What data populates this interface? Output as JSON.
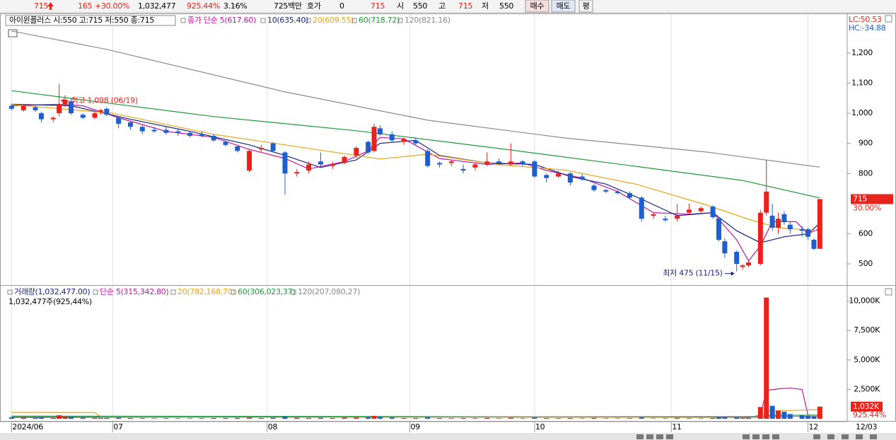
{
  "header": {
    "items": [
      "715",
      "165",
      "+30.00%",
      "1,032,477",
      "925.44%",
      "3.16%",
      "725백만",
      "호가",
      "0",
      "715",
      "시",
      "550",
      "고",
      "715",
      "저",
      "550"
    ],
    "buttons": [
      "매수",
      "매도",
      "평"
    ]
  },
  "chart_data": {
    "type": "candlestick",
    "stock_label": "아이윈플러스 시:550 고:715 저:550 종:715",
    "up_color": "#e8231c",
    "down_color": "#1e5fcf",
    "x": [
      0,
      2,
      4,
      5,
      7,
      8,
      9,
      10,
      12,
      14,
      15,
      16,
      18,
      20,
      22,
      24,
      26,
      28,
      30,
      32,
      34,
      36,
      38,
      40,
      42,
      44,
      46,
      48,
      50,
      52,
      54,
      56,
      58,
      60,
      61,
      62,
      64,
      66,
      68,
      70,
      72,
      74,
      76,
      78,
      80,
      82,
      84,
      86,
      88,
      90,
      92,
      94,
      96,
      98,
      100,
      102,
      104,
      106,
      108,
      110,
      112,
      114,
      116,
      118,
      119,
      120,
      122,
      123,
      124,
      126,
      127,
      128,
      129,
      130,
      131,
      133,
      134,
      135,
      136
    ],
    "open": [
      1025,
      1010,
      1020,
      1000,
      980,
      1000,
      1030,
      1040,
      995,
      985,
      1005,
      1015,
      985,
      970,
      955,
      945,
      945,
      940,
      935,
      930,
      925,
      905,
      890,
      810,
      880,
      900,
      870,
      800,
      810,
      840,
      825,
      835,
      860,
      905,
      875,
      950,
      930,
      905,
      910,
      875,
      835,
      835,
      815,
      820,
      830,
      840,
      830,
      840,
      840,
      795,
      790,
      800,
      790,
      760,
      745,
      740,
      735,
      720,
      660,
      650,
      650,
      670,
      675,
      690,
      650,
      575,
      540,
      490,
      495,
      500,
      670,
      660,
      620,
      665,
      630,
      615,
      615,
      580,
      550
    ],
    "high": [
      1030,
      1030,
      1025,
      1005,
      990,
      1098,
      1060,
      1050,
      1000,
      1005,
      1015,
      1020,
      990,
      975,
      960,
      955,
      955,
      950,
      940,
      940,
      930,
      910,
      895,
      880,
      895,
      905,
      875,
      815,
      840,
      870,
      840,
      860,
      890,
      910,
      965,
      960,
      940,
      920,
      920,
      880,
      840,
      845,
      830,
      835,
      870,
      850,
      900,
      845,
      845,
      800,
      810,
      805,
      800,
      765,
      750,
      745,
      740,
      725,
      670,
      660,
      700,
      700,
      690,
      695,
      655,
      585,
      545,
      500,
      510,
      680,
      845,
      700,
      670,
      675,
      640,
      625,
      620,
      585,
      715
    ],
    "low": [
      1010,
      1005,
      1005,
      970,
      970,
      990,
      1020,
      995,
      980,
      980,
      995,
      990,
      950,
      945,
      930,
      935,
      930,
      925,
      920,
      920,
      905,
      890,
      870,
      805,
      870,
      870,
      730,
      790,
      800,
      820,
      815,
      830,
      850,
      865,
      870,
      925,
      905,
      895,
      895,
      820,
      820,
      825,
      800,
      810,
      825,
      830,
      825,
      825,
      785,
      770,
      785,
      760,
      775,
      740,
      735,
      730,
      715,
      640,
      650,
      640,
      640,
      665,
      665,
      650,
      575,
      520,
      475,
      480,
      490,
      495,
      660,
      610,
      600,
      630,
      600,
      590,
      580,
      545,
      550
    ],
    "close": [
      1015,
      1025,
      1010,
      980,
      985,
      1030,
      1045,
      1000,
      985,
      1000,
      1010,
      995,
      965,
      955,
      940,
      940,
      935,
      935,
      925,
      925,
      910,
      895,
      875,
      875,
      885,
      875,
      800,
      805,
      830,
      830,
      830,
      855,
      885,
      870,
      955,
      930,
      910,
      915,
      900,
      825,
      830,
      840,
      810,
      830,
      840,
      835,
      840,
      830,
      790,
      785,
      800,
      770,
      780,
      745,
      740,
      735,
      720,
      650,
      665,
      645,
      660,
      680,
      685,
      655,
      580,
      535,
      500,
      495,
      505,
      670,
      740,
      620,
      650,
      640,
      615,
      610,
      590,
      550,
      715
    ],
    "volume": [
      120,
      90,
      80,
      110,
      60,
      300,
      200,
      150,
      80,
      70,
      60,
      70,
      90,
      60,
      50,
      40,
      50,
      40,
      40,
      50,
      60,
      60,
      70,
      90,
      60,
      80,
      200,
      80,
      70,
      80,
      60,
      90,
      100,
      130,
      250,
      150,
      100,
      60,
      60,
      120,
      60,
      50,
      60,
      50,
      70,
      40,
      80,
      40,
      100,
      60,
      50,
      60,
      40,
      70,
      40,
      40,
      50,
      100,
      40,
      40,
      70,
      50,
      40,
      60,
      150,
      150,
      100,
      60,
      70,
      1000,
      10300,
      1100,
      700,
      600,
      400,
      300,
      250,
      200,
      1032
    ],
    "ma": [
      {
        "name": "종가 단순 5(617.60)",
        "color": "#c0189c",
        "x": [
          0,
          8,
          12,
          18,
          26,
          34,
          40,
          46,
          50,
          56,
          60,
          62,
          66,
          72,
          80,
          86,
          90,
          96,
          102,
          108,
          114,
          118,
          122,
          124,
          126,
          128,
          132,
          134,
          136
        ],
        "values": [
          1025,
          1030,
          1025,
          985,
          940,
          920,
          880,
          850,
          815,
          840,
          875,
          920,
          915,
          850,
          830,
          835,
          810,
          785,
          740,
          670,
          665,
          670,
          580,
          510,
          560,
          640,
          640,
          600,
          618
        ]
      },
      {
        "name": "10(635.40)",
        "color": "#1a237e",
        "x": [
          0,
          10,
          20,
          30,
          40,
          46,
          52,
          58,
          62,
          68,
          72,
          80,
          88,
          94,
          100,
          106,
          112,
          118,
          122,
          126,
          130,
          134,
          136
        ],
        "values": [
          1030,
          1025,
          980,
          940,
          895,
          860,
          820,
          845,
          900,
          910,
          860,
          835,
          830,
          790,
          765,
          715,
          660,
          670,
          610,
          570,
          590,
          600,
          635
        ]
      },
      {
        "name": "20(609.55)",
        "color": "#e8a317",
        "x": [
          0,
          17,
          34,
          46,
          62,
          70,
          82,
          93,
          105,
          111,
          117,
          124,
          129,
          136
        ],
        "values": [
          1029,
          1000,
          930,
          895,
          848,
          864,
          829,
          812,
          765,
          730,
          695,
          648,
          620,
          610
        ]
      },
      {
        "name": "60(718.72)",
        "color": "#1e9a3c",
        "x": [
          0,
          11,
          34,
          58,
          82,
          105,
          123,
          136
        ],
        "values": [
          1075,
          1047,
          989,
          942,
          883,
          824,
          777,
          719
        ]
      },
      {
        "name": "120(821.16)",
        "color": "#8a8a8a",
        "x": [
          0,
          16,
          46,
          70,
          93,
          117,
          136
        ],
        "values": [
          1273,
          1212,
          1071,
          977,
          918,
          871,
          821
        ]
      }
    ],
    "ylim": [
      432,
      1329
    ],
    "yticks": [
      500,
      600,
      {
        "value": 800,
        "label": "800"
      },
      900,
      {
        "value": 1000,
        "label": "1,000"
      },
      {
        "value": 1100,
        "label": "1,100"
      },
      {
        "value": 1200,
        "label": "1,200"
      }
    ],
    "xlim": [
      -1,
      140.6
    ],
    "xticks": [
      {
        "value": 0,
        "label": "2024/06"
      },
      {
        "value": 17,
        "label": "07"
      },
      {
        "value": 43,
        "label": "08"
      },
      {
        "value": 67,
        "label": "09"
      },
      {
        "value": 88,
        "label": "10"
      },
      {
        "value": 111,
        "label": "11"
      },
      {
        "value": 134,
        "label": "12"
      }
    ],
    "x_end_label": "12/03",
    "annotations": [
      {
        "text": "최고 1,098 (06/19)",
        "x": 8,
        "y": 1098
      },
      {
        "text": "최저 475 (11/15)",
        "x": 122,
        "y": 475
      }
    ],
    "last_label": "715",
    "last_change": "30.00%",
    "lc": "LC:50.53",
    "hc": "HC:-34.88",
    "volume_legend": [
      {
        "text": "거래량(1,032,477.00)",
        "color": "#1a237e"
      },
      {
        "text": "단순 5(315,342,80)",
        "color": "#c0189c"
      },
      {
        "text": "20(782,168,70)",
        "color": "#e8a317"
      },
      {
        "text": "60(306,023,37)",
        "color": "#1e9a3c"
      },
      {
        "text": "120(207,080,27)",
        "color": "#8a8a8a"
      }
    ],
    "volume_sub": "1,032,477주(925,44%)",
    "volume_ma": [
      {
        "color": "#c0189c",
        "x": [
          0,
          120,
          124,
          126,
          127,
          129,
          131,
          133,
          134,
          136
        ],
        "values": [
          150,
          130,
          100,
          300,
          2400,
          2550,
          2600,
          2500,
          300,
          315
        ]
      },
      {
        "color": "#e8a317",
        "x": [
          0,
          14,
          15,
          120,
          126,
          127,
          136
        ],
        "values": [
          540,
          520,
          160,
          120,
          150,
          650,
          782
        ]
      },
      {
        "color": "#1e9a3c",
        "x": [
          0,
          60,
          126,
          127,
          136
        ],
        "values": [
          230,
          200,
          130,
          300,
          306
        ]
      },
      {
        "color": "#8a8a8a",
        "x": [
          0,
          136
        ],
        "values": [
          100,
          207
        ]
      }
    ],
    "vlim": [
      0,
      11300
    ],
    "vticks": [
      {
        "value": 2500,
        "label": "2,500K"
      },
      {
        "value": 5000,
        "label": "5,000K"
      },
      {
        "value": 7500,
        "label": "7,500K"
      },
      {
        "value": 10000,
        "label": "10,000K"
      }
    ],
    "volume_last_label": "1,032K",
    "volume_last_change": "925.44%",
    "grid": true
  }
}
